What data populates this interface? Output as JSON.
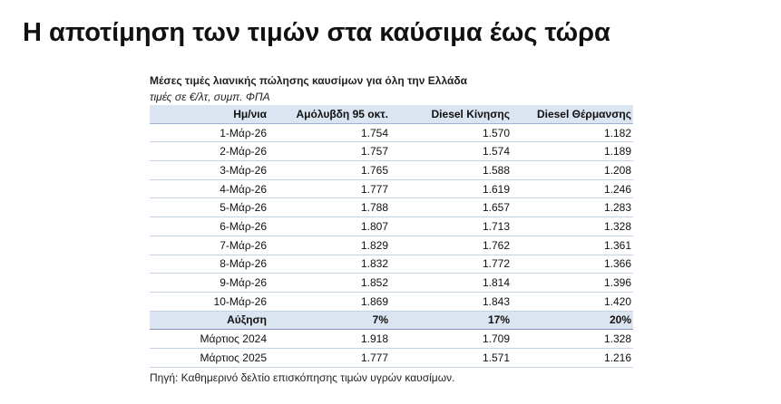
{
  "title": "Η αποτίμηση των τιμών στα καύσιμα έως τώρα",
  "table": {
    "subtitle": "Μέσες τιμές λιανικής πώλησης καυσίμων για όλη την Ελλάδα",
    "units": "τιμές σε €/λτ, συμπ. ΦΠΑ",
    "headers": [
      "Ημ/νια",
      "Αμόλυβδη 95 οκτ.",
      "Diesel Κίνησης",
      "Diesel Θέρμανσης"
    ],
    "rows": [
      [
        "1-Μάρ-26",
        "1.754",
        "1.570",
        "1.182"
      ],
      [
        "2-Μάρ-26",
        "1.757",
        "1.574",
        "1.189"
      ],
      [
        "3-Μάρ-26",
        "1.765",
        "1.588",
        "1.208"
      ],
      [
        "4-Μάρ-26",
        "1.777",
        "1.619",
        "1.246"
      ],
      [
        "5-Μάρ-26",
        "1.788",
        "1.657",
        "1.283"
      ],
      [
        "6-Μάρ-26",
        "1.807",
        "1.713",
        "1.328"
      ],
      [
        "7-Μάρ-26",
        "1.829",
        "1.762",
        "1.361"
      ],
      [
        "8-Μάρ-26",
        "1.832",
        "1.772",
        "1.366"
      ],
      [
        "9-Μάρ-26",
        "1.852",
        "1.814",
        "1.396"
      ],
      [
        "10-Μάρ-26",
        "1.869",
        "1.843",
        "1.420"
      ]
    ],
    "increase_row": [
      "Αύξηση",
      "7%",
      "17%",
      "20%"
    ],
    "comparison_rows": [
      [
        "Μάρτιος 2024",
        "1.918",
        "1.709",
        "1.328"
      ],
      [
        "Μάρτιος 2025",
        "1.777",
        "1.571",
        "1.216"
      ]
    ],
    "source": "Πηγή: Καθημερινό δελτίο επισκόπησης τιμών υγρών καυσίμων."
  },
  "colors": {
    "header_bg": "#dbe4f1",
    "row_border": "#c6d2e5",
    "increase_border": "#7f94b8"
  }
}
